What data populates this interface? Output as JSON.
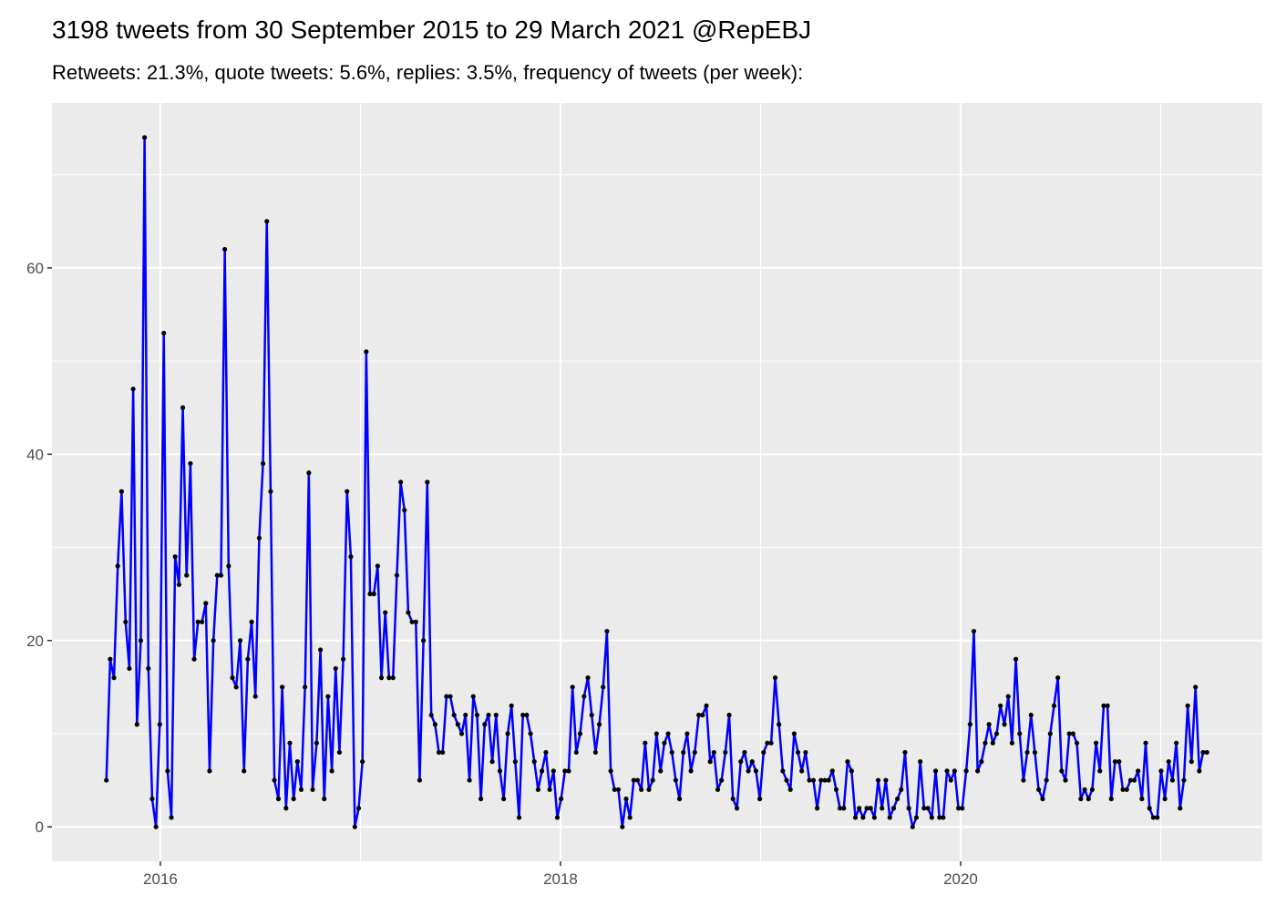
{
  "chart_data": {
    "type": "line",
    "title": "3198 tweets from 30 September 2015 to 29 March 2021 @RepEBJ",
    "subtitle": "Retweets: 21.3%, quote tweets: 5.6%, replies: 3.5%, frequency of tweets (per week):",
    "x": [
      2015.73,
      2015.749,
      2015.768,
      2015.787,
      2015.806,
      2015.826,
      2015.845,
      2015.864,
      2015.883,
      2015.902,
      2015.921,
      2015.94,
      2015.959,
      2015.978,
      2015.997,
      2016.017,
      2016.036,
      2016.055,
      2016.074,
      2016.093,
      2016.112,
      2016.131,
      2016.15,
      2016.169,
      2016.188,
      2016.208,
      2016.227,
      2016.246,
      2016.265,
      2016.284,
      2016.303,
      2016.322,
      2016.341,
      2016.36,
      2016.379,
      2016.399,
      2016.418,
      2016.437,
      2016.456,
      2016.475,
      2016.494,
      2016.513,
      2016.532,
      2016.551,
      2016.57,
      2016.59,
      2016.609,
      2016.628,
      2016.647,
      2016.666,
      2016.685,
      2016.704,
      2016.723,
      2016.742,
      2016.761,
      2016.781,
      2016.8,
      2016.819,
      2016.838,
      2016.857,
      2016.876,
      2016.895,
      2016.914,
      2016.933,
      2016.952,
      2016.972,
      2016.991,
      2017.01,
      2017.029,
      2017.048,
      2017.067,
      2017.086,
      2017.105,
      2017.124,
      2017.143,
      2017.163,
      2017.182,
      2017.201,
      2017.22,
      2017.239,
      2017.258,
      2017.277,
      2017.296,
      2017.315,
      2017.334,
      2017.354,
      2017.373,
      2017.392,
      2017.411,
      2017.43,
      2017.449,
      2017.468,
      2017.487,
      2017.506,
      2017.525,
      2017.545,
      2017.564,
      2017.583,
      2017.602,
      2017.621,
      2017.64,
      2017.659,
      2017.678,
      2017.697,
      2017.716,
      2017.736,
      2017.755,
      2017.774,
      2017.793,
      2017.812,
      2017.831,
      2017.85,
      2017.869,
      2017.888,
      2017.907,
      2017.927,
      2017.946,
      2017.965,
      2017.984,
      2018.003,
      2018.022,
      2018.041,
      2018.06,
      2018.079,
      2018.098,
      2018.118,
      2018.137,
      2018.156,
      2018.175,
      2018.194,
      2018.213,
      2018.232,
      2018.251,
      2018.27,
      2018.289,
      2018.309,
      2018.328,
      2018.347,
      2018.366,
      2018.385,
      2018.404,
      2018.423,
      2018.442,
      2018.461,
      2018.48,
      2018.5,
      2018.519,
      2018.538,
      2018.557,
      2018.576,
      2018.595,
      2018.614,
      2018.633,
      2018.652,
      2018.671,
      2018.691,
      2018.71,
      2018.729,
      2018.748,
      2018.767,
      2018.786,
      2018.805,
      2018.824,
      2018.843,
      2018.862,
      2018.882,
      2018.901,
      2018.92,
      2018.939,
      2018.958,
      2018.977,
      2018.996,
      2019.015,
      2019.034,
      2019.053,
      2019.073,
      2019.092,
      2019.111,
      2019.13,
      2019.149,
      2019.168,
      2019.187,
      2019.206,
      2019.225,
      2019.244,
      2019.264,
      2019.283,
      2019.302,
      2019.321,
      2019.34,
      2019.359,
      2019.378,
      2019.397,
      2019.416,
      2019.435,
      2019.455,
      2019.474,
      2019.493,
      2019.512,
      2019.531,
      2019.55,
      2019.569,
      2019.588,
      2019.607,
      2019.626,
      2019.646,
      2019.665,
      2019.684,
      2019.703,
      2019.722,
      2019.741,
      2019.76,
      2019.779,
      2019.798,
      2019.817,
      2019.837,
      2019.856,
      2019.875,
      2019.894,
      2019.913,
      2019.932,
      2019.951,
      2019.97,
      2019.989,
      2020.008,
      2020.028,
      2020.047,
      2020.066,
      2020.085,
      2020.104,
      2020.123,
      2020.142,
      2020.161,
      2020.18,
      2020.199,
      2020.219,
      2020.238,
      2020.257,
      2020.276,
      2020.295,
      2020.314,
      2020.333,
      2020.352,
      2020.371,
      2020.39,
      2020.41,
      2020.429,
      2020.448,
      2020.467,
      2020.486,
      2020.505,
      2020.524,
      2020.543,
      2020.562,
      2020.581,
      2020.601,
      2020.62,
      2020.639,
      2020.658,
      2020.677,
      2020.696,
      2020.715,
      2020.734,
      2020.753,
      2020.772,
      2020.792,
      2020.811,
      2020.83,
      2020.849,
      2020.868,
      2020.887,
      2020.906,
      2020.925,
      2020.944,
      2020.963,
      2020.983,
      2021.002,
      2021.021,
      2021.04,
      2021.059,
      2021.078,
      2021.097,
      2021.116,
      2021.135,
      2021.154,
      2021.174,
      2021.193,
      2021.212,
      2021.231
    ],
    "values": [
      5,
      18,
      16,
      28,
      36,
      22,
      17,
      47,
      11,
      20,
      74,
      17,
      3,
      0,
      11,
      53,
      6,
      1,
      29,
      26,
      45,
      27,
      39,
      18,
      22,
      22,
      24,
      6,
      20,
      27,
      27,
      62,
      28,
      16,
      15,
      20,
      6,
      18,
      22,
      14,
      31,
      39,
      65,
      36,
      5,
      3,
      15,
      2,
      9,
      3,
      7,
      4,
      15,
      38,
      4,
      9,
      19,
      3,
      14,
      6,
      17,
      8,
      18,
      36,
      29,
      0,
      2,
      7,
      51,
      25,
      25,
      28,
      16,
      23,
      16,
      16,
      27,
      37,
      34,
      23,
      22,
      22,
      5,
      20,
      37,
      12,
      11,
      8,
      8,
      14,
      14,
      12,
      11,
      10,
      12,
      5,
      14,
      12,
      3,
      11,
      12,
      7,
      12,
      6,
      3,
      10,
      13,
      7,
      1,
      12,
      12,
      10,
      7,
      4,
      6,
      8,
      4,
      6,
      1,
      3,
      6,
      6,
      15,
      8,
      10,
      14,
      16,
      12,
      8,
      11,
      15,
      21,
      6,
      4,
      4,
      0,
      3,
      1,
      5,
      5,
      4,
      9,
      4,
      5,
      10,
      6,
      9,
      10,
      8,
      5,
      3,
      8,
      10,
      6,
      8,
      12,
      12,
      13,
      7,
      8,
      4,
      5,
      8,
      12,
      3,
      2,
      7,
      8,
      6,
      7,
      6,
      3,
      8,
      9,
      9,
      16,
      11,
      6,
      5,
      4,
      10,
      8,
      6,
      8,
      5,
      5,
      2,
      5,
      5,
      5,
      6,
      4,
      2,
      2,
      7,
      6,
      1,
      2,
      1,
      2,
      2,
      1,
      5,
      2,
      5,
      1,
      2,
      3,
      4,
      8,
      2,
      0,
      1,
      7,
      2,
      2,
      1,
      6,
      1,
      1,
      6,
      5,
      6,
      2,
      2,
      6,
      11,
      21,
      6,
      7,
      9,
      11,
      9,
      10,
      13,
      11,
      14,
      9,
      18,
      10,
      5,
      8,
      12,
      8,
      4,
      3,
      5,
      10,
      13,
      16,
      6,
      5,
      10,
      10,
      9,
      3,
      4,
      3,
      4,
      9,
      6,
      13,
      13,
      3,
      7,
      7,
      4,
      4,
      5,
      5,
      6,
      3,
      9,
      2,
      1,
      1,
      6,
      3,
      7,
      5,
      9,
      2,
      5,
      13,
      7,
      15,
      6,
      8,
      8
    ],
    "color": "#0000ff",
    "point_color": "#000000",
    "xlim": [
      2015.458,
      2021.508
    ],
    "xticks": [
      2016,
      2018,
      2020
    ],
    "xminorticks": [
      2017,
      2019,
      2021
    ],
    "ylim": [
      -3.7,
      77.7
    ],
    "yticks": [
      0,
      20,
      40,
      60
    ],
    "yminorticks": [
      10,
      30,
      50,
      70
    ],
    "grid": true
  }
}
